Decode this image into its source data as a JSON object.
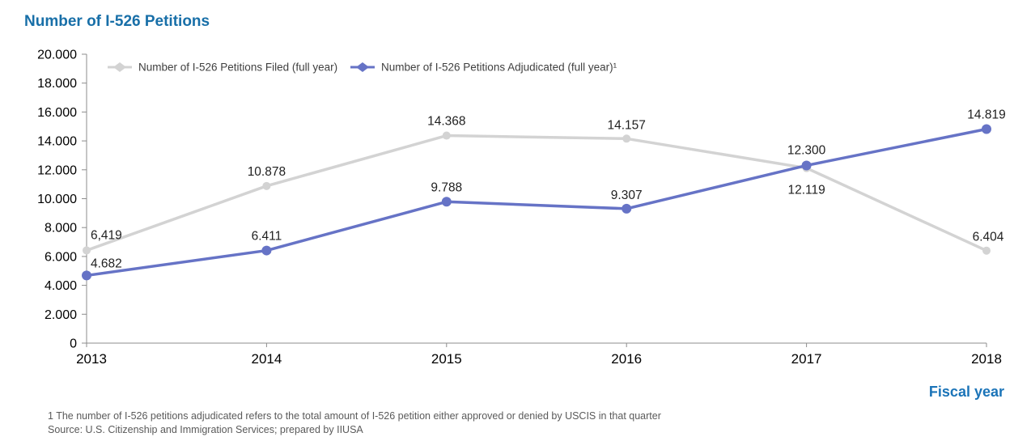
{
  "footnotes": {
    "note1": "1 The number of I-526 petitions adjudicated refers to the total amount of I-526 petition either approved or denied by USCIS in that quarter",
    "source": "Source: U.S. Citizenship and Immigration Services; prepared by IIUSA"
  },
  "chart_data": {
    "type": "line",
    "title": "Number of I-526 Petitions",
    "xlabel": "Fiscal year",
    "ylabel": "",
    "categories": [
      "2013",
      "2014",
      "2015",
      "2016",
      "2017",
      "2018"
    ],
    "series": [
      {
        "name": "Number of I-526 Petitions Filed (full year)",
        "values": [
          6419,
          10878,
          14368,
          14157,
          12119,
          6404
        ],
        "labels": [
          "6,419",
          "10.878",
          "14.368",
          "14.157",
          "12.119",
          "6.404"
        ],
        "color": "#d3d3d3"
      },
      {
        "name": "Number of I-526 Petitions Adjudicated (full year)¹",
        "values": [
          4682,
          6411,
          9788,
          9307,
          12300,
          14819
        ],
        "labels": [
          "4.682",
          "6.411",
          "9.788",
          "9.307",
          "12.300",
          "14.819"
        ],
        "color": "#6673c6"
      }
    ],
    "ylim": [
      0,
      20000
    ],
    "ytick_step": 2000,
    "ytick_labels": [
      "0",
      "2.000",
      "4.000",
      "6.000",
      "8.000",
      "10.000",
      "12.000",
      "14.000",
      "16.000",
      "18.000",
      "20.000"
    ],
    "grid": false,
    "legend_position": "top-inside",
    "axis_color": "#8c8c8c",
    "tick_label_color": "#000000",
    "data_label_color": "#1f1f1f",
    "legend_text_color": "#404040"
  }
}
